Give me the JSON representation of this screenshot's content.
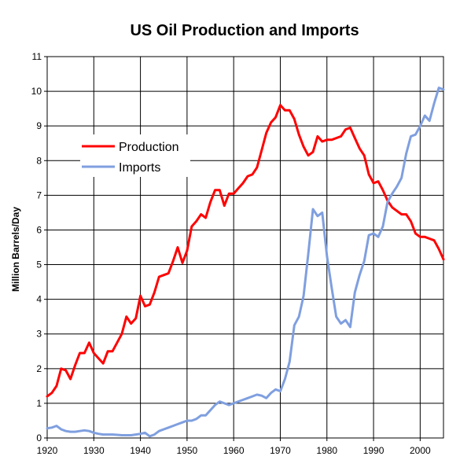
{
  "chart_data": {
    "type": "line",
    "title": "US Oil Production and Imports",
    "xlabel": "",
    "ylabel": "Million Barrels/Day",
    "xlim": [
      1920,
      2005
    ],
    "ylim": [
      0,
      11
    ],
    "x_ticks": [
      "1920",
      "1930",
      "1940",
      "1950",
      "1960",
      "1970",
      "1980",
      "1990",
      "2000"
    ],
    "y_ticks": [
      "0",
      "1",
      "2",
      "3",
      "4",
      "5",
      "6",
      "7",
      "8",
      "9",
      "10",
      "11"
    ],
    "grid": true,
    "legend_position": "upper-left",
    "series": [
      {
        "name": "Production",
        "color": "#ff0000",
        "x": [
          1920,
          1921,
          1922,
          1923,
          1924,
          1925,
          1926,
          1927,
          1928,
          1929,
          1930,
          1931,
          1932,
          1933,
          1934,
          1935,
          1936,
          1937,
          1938,
          1939,
          1940,
          1941,
          1942,
          1943,
          1944,
          1945,
          1946,
          1947,
          1948,
          1949,
          1950,
          1951,
          1952,
          1953,
          1954,
          1955,
          1956,
          1957,
          1958,
          1959,
          1960,
          1961,
          1962,
          1963,
          1964,
          1965,
          1966,
          1967,
          1968,
          1969,
          1970,
          1971,
          1972,
          1973,
          1974,
          1975,
          1976,
          1977,
          1978,
          1979,
          1980,
          1981,
          1982,
          1983,
          1984,
          1985,
          1986,
          1987,
          1988,
          1989,
          1990,
          1991,
          1992,
          1993,
          1994,
          1995,
          1996,
          1997,
          1998,
          1999,
          2000,
          2001,
          2002,
          2003,
          2004,
          2005
        ],
        "values": [
          1.2,
          1.3,
          1.5,
          2.0,
          1.95,
          1.7,
          2.1,
          2.45,
          2.45,
          2.75,
          2.45,
          2.3,
          2.15,
          2.5,
          2.5,
          2.75,
          3.0,
          3.5,
          3.3,
          3.45,
          4.1,
          3.8,
          3.85,
          4.2,
          4.65,
          4.7,
          4.75,
          5.1,
          5.5,
          5.05,
          5.4,
          6.1,
          6.25,
          6.45,
          6.35,
          6.8,
          7.15,
          7.15,
          6.7,
          7.05,
          7.05,
          7.2,
          7.35,
          7.55,
          7.6,
          7.8,
          8.3,
          8.8,
          9.1,
          9.25,
          9.6,
          9.45,
          9.45,
          9.2,
          8.75,
          8.4,
          8.15,
          8.25,
          8.7,
          8.55,
          8.6,
          8.6,
          8.65,
          8.7,
          8.9,
          8.95,
          8.65,
          8.35,
          8.15,
          7.6,
          7.35,
          7.4,
          7.15,
          6.85,
          6.65,
          6.55,
          6.45,
          6.45,
          6.25,
          5.9,
          5.8,
          5.8,
          5.75,
          5.7,
          5.45,
          5.15
        ]
      },
      {
        "name": "Imports",
        "color": "#7f9fdf",
        "x": [
          1920,
          1921,
          1922,
          1923,
          1924,
          1925,
          1926,
          1927,
          1928,
          1929,
          1930,
          1931,
          1932,
          1933,
          1934,
          1935,
          1936,
          1937,
          1938,
          1939,
          1940,
          1941,
          1942,
          1943,
          1944,
          1945,
          1946,
          1947,
          1948,
          1949,
          1950,
          1951,
          1952,
          1953,
          1954,
          1955,
          1956,
          1957,
          1958,
          1959,
          1960,
          1961,
          1962,
          1963,
          1964,
          1965,
          1966,
          1967,
          1968,
          1969,
          1970,
          1971,
          1972,
          1973,
          1974,
          1975,
          1976,
          1977,
          1978,
          1979,
          1980,
          1981,
          1982,
          1983,
          1984,
          1985,
          1986,
          1987,
          1988,
          1989,
          1990,
          1991,
          1992,
          1993,
          1994,
          1995,
          1996,
          1997,
          1998,
          1999,
          2000,
          2001,
          2002,
          2003,
          2004,
          2005
        ],
        "values": [
          0.28,
          0.3,
          0.35,
          0.25,
          0.2,
          0.18,
          0.18,
          0.2,
          0.22,
          0.2,
          0.15,
          0.12,
          0.1,
          0.1,
          0.1,
          0.09,
          0.08,
          0.08,
          0.08,
          0.1,
          0.12,
          0.15,
          0.05,
          0.1,
          0.2,
          0.25,
          0.3,
          0.35,
          0.4,
          0.45,
          0.5,
          0.5,
          0.55,
          0.65,
          0.65,
          0.8,
          0.95,
          1.05,
          1.0,
          0.95,
          1.0,
          1.05,
          1.1,
          1.15,
          1.2,
          1.25,
          1.22,
          1.15,
          1.3,
          1.4,
          1.35,
          1.7,
          2.2,
          3.25,
          3.5,
          4.1,
          5.3,
          6.6,
          6.4,
          6.5,
          5.25,
          4.35,
          3.5,
          3.3,
          3.4,
          3.2,
          4.2,
          4.7,
          5.1,
          5.85,
          5.9,
          5.8,
          6.1,
          6.8,
          7.05,
          7.25,
          7.5,
          8.2,
          8.7,
          8.75,
          9.0,
          9.3,
          9.15,
          9.65,
          10.1,
          10.05
        ]
      }
    ]
  }
}
